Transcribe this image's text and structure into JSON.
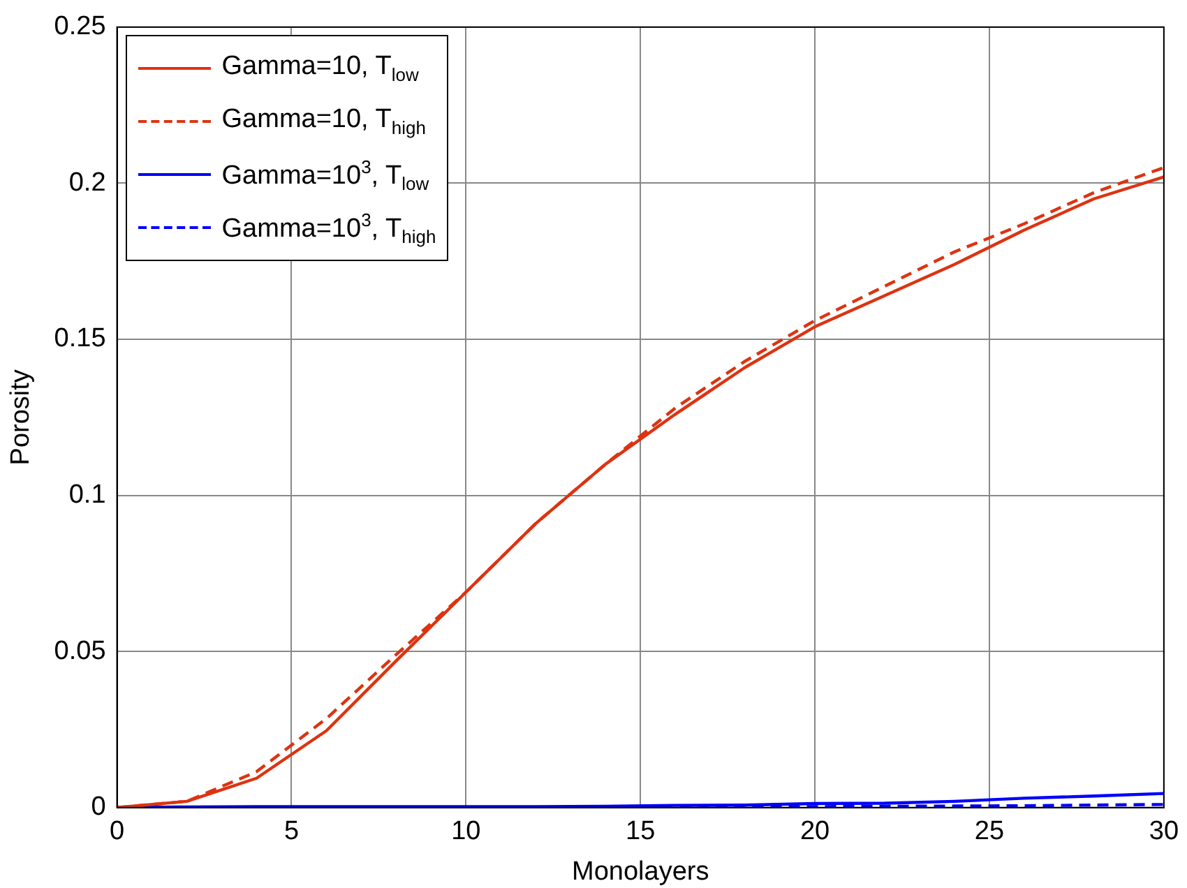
{
  "chart_data": {
    "type": "line",
    "xlabel": "Monolayers",
    "ylabel": "Porosity",
    "x": [
      0,
      2,
      4,
      6,
      8,
      10,
      12,
      14,
      16,
      18,
      20,
      22,
      24,
      26,
      28,
      30
    ],
    "xlim": [
      0,
      30
    ],
    "xticks": [
      0,
      5,
      10,
      15,
      20,
      25,
      30
    ],
    "ylim": [
      0,
      0.25
    ],
    "yticks": [
      0,
      0.05,
      0.1,
      0.15,
      0.2,
      0.25
    ],
    "grid": true,
    "legend": "top left",
    "marker": "none",
    "series": [
      {
        "name": "Gamma=10, T$_{low}$",
        "color": "#dd3311",
        "line_style": "solid",
        "values": [
          0,
          0.002,
          0.0094,
          0.0246,
          0.047,
          0.069,
          0.091,
          0.11,
          0.126,
          0.141,
          0.154,
          0.164,
          0.174,
          0.185,
          0.195,
          0.202
        ]
      },
      {
        "name": "Gamma=10, T$_{high}$",
        "color": "#dd3311",
        "line_style": "dashed",
        "values": [
          0,
          0.002,
          0.0115,
          0.0285,
          0.049,
          0.069,
          0.091,
          0.11,
          0.128,
          0.143,
          0.156,
          0.167,
          0.178,
          0.187,
          0.197,
          0.205
        ]
      },
      {
        "name": "Gamma=10$^{3}$, T$_{low}$",
        "color": "#0000ff",
        "line_style": "solid",
        "values": [
          0,
          0.0002,
          0.0003,
          0.0003,
          0.0003,
          0.0003,
          0.0003,
          0.0004,
          0.0007,
          0.0008,
          0.0013,
          0.0014,
          0.002,
          0.003,
          0.0037,
          0.0045
        ]
      },
      {
        "name": "Gamma=10$^{3}$, T$_{high}$",
        "color": "#0000ff",
        "line_style": "dashed",
        "values": [
          0,
          0.0001,
          0.0001,
          0.0001,
          0.0001,
          0.0001,
          0.0001,
          0.0001,
          0.0002,
          0.0002,
          0.0003,
          0.0004,
          0.0005,
          0.0006,
          0.0008,
          0.001
        ]
      }
    ]
  }
}
